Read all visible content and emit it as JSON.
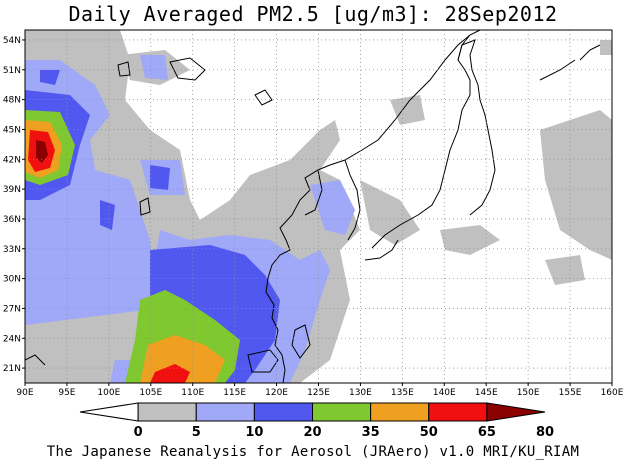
{
  "title": "Daily Averaged PM2.5 [ug/m3]: 28Sep2012",
  "credit": "The Japanese Reanalysis for Aerosol (JRAero) v1.0 MRI/KU_RIAM",
  "map": {
    "lon_range": [
      90,
      160
    ],
    "lat_range": [
      19.5,
      55
    ],
    "lon_ticks": [
      "90E",
      "95E",
      "100E",
      "105E",
      "110E",
      "115E",
      "120E",
      "125E",
      "130E",
      "135E",
      "140E",
      "145E",
      "150E",
      "155E",
      "160E"
    ],
    "lat_ticks": [
      "21N",
      "24N",
      "27N",
      "30N",
      "33N",
      "36N",
      "39N",
      "42N",
      "45N",
      "48N",
      "51N",
      "54N"
    ],
    "grid": true,
    "grid_style": "dotted"
  },
  "colorbar": {
    "labels": [
      "0",
      "5",
      "10",
      "20",
      "35",
      "50",
      "65",
      "80"
    ],
    "colors": [
      "#ffffff",
      "#c0c0c0",
      "#a0a8f8",
      "#5058f0",
      "#80c830",
      "#f0a020",
      "#f01010",
      "#8b0000"
    ]
  }
}
